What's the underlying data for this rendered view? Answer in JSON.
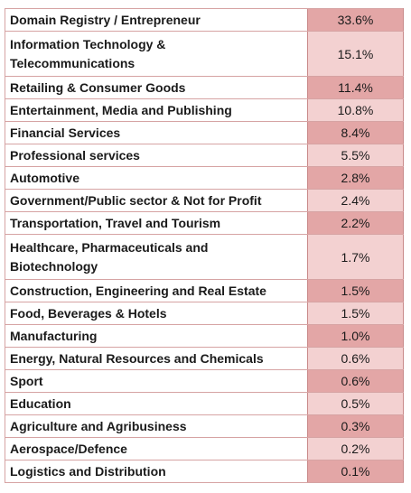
{
  "table": {
    "rows": [
      [
        "Domain Registry / Entrepreneur",
        "33.6%"
      ],
      [
        "Information Technology & Telecommunications",
        "15.1%"
      ],
      [
        "Retailing & Consumer Goods",
        "11.4%"
      ],
      [
        "Entertainment, Media and Publishing",
        "10.8%"
      ],
      [
        "Financial Services",
        "8.4%"
      ],
      [
        "Professional services",
        "5.5%"
      ],
      [
        "Automotive",
        "2.8%"
      ],
      [
        "Government/Public sector & Not for Profit",
        "2.4%"
      ],
      [
        "Transportation, Travel and Tourism",
        "2.2%"
      ],
      [
        "Healthcare, Pharmaceuticals and Biotechnology",
        "1.7%"
      ],
      [
        "Construction, Engineering and Real Estate",
        "1.5%"
      ],
      [
        "Food, Beverages & Hotels",
        "1.5%"
      ],
      [
        "Manufacturing",
        "1.0%"
      ],
      [
        "Energy, Natural Resources and Chemicals",
        "0.6%"
      ],
      [
        "Sport",
        "0.6%"
      ],
      [
        "Education",
        "0.5%"
      ],
      [
        "Agriculture and Agribusiness",
        "0.3%"
      ],
      [
        "Aerospace/Defence",
        "0.2%"
      ],
      [
        "Logistics and Distribution",
        "0.1%"
      ]
    ]
  }
}
